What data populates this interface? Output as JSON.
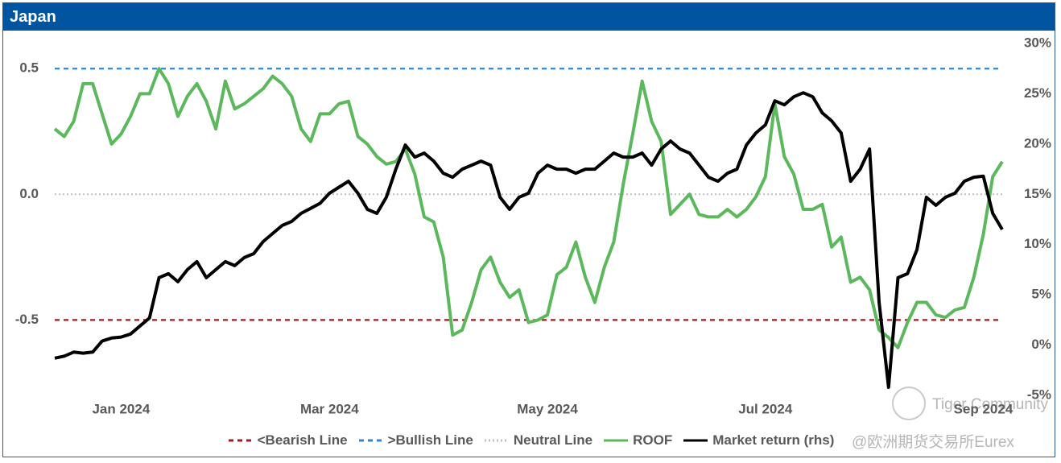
{
  "chart_data": {
    "type": "line",
    "title": "Japan",
    "categories": [
      null,
      null,
      null,
      null,
      null,
      null,
      null,
      "Jan 2024",
      null,
      null,
      null,
      null,
      null,
      null,
      null,
      null,
      null,
      null,
      null,
      null,
      null,
      null,
      null,
      null,
      null,
      null,
      null,
      null,
      null,
      "Mar 2024",
      null,
      null,
      null,
      null,
      null,
      null,
      null,
      null,
      null,
      null,
      null,
      null,
      null,
      null,
      null,
      null,
      null,
      null,
      null,
      null,
      null,
      null,
      "May 2024",
      null,
      null,
      null,
      null,
      null,
      null,
      null,
      null,
      null,
      null,
      null,
      null,
      null,
      null,
      null,
      null,
      null,
      null,
      null,
      null,
      null,
      null,
      "Jul 2024",
      null,
      null,
      null,
      null,
      null,
      null,
      null,
      null,
      null,
      null,
      null,
      null,
      null,
      null,
      null,
      null,
      null,
      null,
      null,
      null,
      null,
      null,
      "Sep 2024",
      null,
      null
    ],
    "ylim": [
      -0.8,
      0.6
    ],
    "yticks": [
      {
        "value": 0.5,
        "label": "0.5"
      },
      {
        "value": 0,
        "label": "0.0"
      },
      {
        "value": -0.5,
        "label": "-0.5"
      }
    ],
    "y2lim": [
      -5,
      30
    ],
    "y2ticks": [
      {
        "value": 30,
        "label": "30%"
      },
      {
        "value": 25,
        "label": "25%"
      },
      {
        "value": 20,
        "label": "20%"
      },
      {
        "value": 15,
        "label": "15%"
      },
      {
        "value": 10,
        "label": "10%"
      },
      {
        "value": 5,
        "label": "5%"
      },
      {
        "value": 0,
        "label": "0%"
      },
      {
        "value": -5,
        "label": "-5%"
      }
    ],
    "reference_lines": [
      {
        "name": "<Bearish Line",
        "value": -0.5,
        "color": "#a01c20",
        "style": "dashed"
      },
      {
        "name": ">Bullish Line",
        "value": 0.5,
        "color": "#2e86d4",
        "style": "dashed"
      },
      {
        "name": "Neutral Line",
        "value": 0,
        "color": "#bfbfbf",
        "style": "dotted"
      }
    ],
    "series": [
      {
        "name": "ROOF",
        "color": "#5cb85c",
        "values": [
          0.26,
          0.23,
          0.29,
          0.44,
          0.44,
          0.32,
          0.2,
          0.24,
          0.31,
          0.4,
          0.4,
          0.5,
          0.44,
          0.31,
          0.39,
          0.44,
          0.37,
          0.26,
          0.45,
          0.34,
          0.36,
          0.39,
          0.42,
          0.47,
          0.44,
          0.39,
          0.26,
          0.21,
          0.32,
          0.32,
          0.36,
          0.37,
          0.23,
          0.2,
          0.15,
          0.12,
          0.13,
          0.18,
          0.08,
          -0.09,
          -0.11,
          -0.25,
          -0.56,
          -0.54,
          -0.43,
          -0.3,
          -0.25,
          -0.35,
          -0.41,
          -0.38,
          -0.51,
          -0.5,
          -0.48,
          -0.32,
          -0.29,
          -0.19,
          -0.33,
          -0.43,
          -0.29,
          -0.19,
          0.04,
          0.24,
          0.45,
          0.29,
          0.21,
          -0.08,
          -0.04,
          0.0,
          -0.08,
          -0.09,
          -0.09,
          -0.06,
          -0.09,
          -0.06,
          -0.01,
          0.07,
          0.36,
          0.15,
          0.08,
          -0.06,
          -0.06,
          -0.04,
          -0.21,
          -0.17,
          -0.35,
          -0.33,
          -0.38,
          -0.54,
          -0.57,
          -0.61,
          -0.51,
          -0.43,
          -0.43,
          -0.48,
          -0.49,
          -0.46,
          -0.45,
          -0.33,
          -0.16,
          0.07,
          0.13
        ]
      },
      {
        "name": "Market return (rhs)",
        "color": "#000000",
        "axis": "y2",
        "values": [
          -1.3,
          -1.1,
          -0.7,
          -0.8,
          -0.7,
          0.4,
          0.7,
          0.8,
          1.1,
          1.9,
          2.7,
          6.7,
          7.1,
          6.3,
          7.5,
          8.3,
          6.7,
          7.5,
          8.3,
          7.9,
          8.7,
          9.1,
          10.3,
          11.1,
          11.9,
          12.3,
          13.1,
          13.6,
          14.1,
          15.1,
          15.7,
          16.3,
          15.1,
          13.5,
          13.1,
          14.7,
          17.5,
          19.9,
          18.7,
          19.1,
          18.3,
          17.1,
          16.7,
          17.5,
          17.9,
          18.3,
          17.9,
          14.7,
          13.5,
          14.7,
          15.1,
          17.1,
          17.9,
          17.5,
          17.5,
          17.1,
          17.5,
          17.5,
          18.3,
          19.1,
          18.7,
          18.7,
          19.1,
          17.9,
          19.5,
          20.3,
          19.5,
          19.1,
          17.9,
          16.7,
          16.3,
          17.1,
          17.5,
          19.9,
          21.1,
          21.9,
          24.3,
          23.9,
          24.7,
          25.1,
          24.7,
          23.1,
          22.3,
          21.1,
          16.3,
          17.5,
          19.5,
          4.3,
          -4.2,
          6.7,
          7.1,
          9.5,
          14.7,
          13.9,
          14.7,
          15.1,
          16.3,
          16.7,
          16.8,
          13.1,
          11.5
        ]
      }
    ],
    "legend": "bottom",
    "watermark": [
      "Tiger Community",
      "@欧洲期货交易所Eurex"
    ]
  }
}
